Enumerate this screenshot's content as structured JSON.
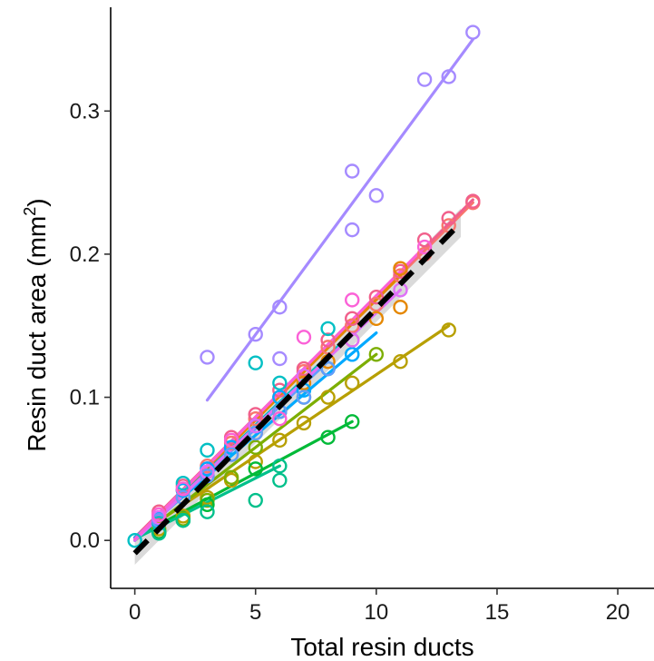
{
  "chart_data": {
    "type": "scatter",
    "title": "",
    "xlabel": "Total resin ducts",
    "ylabel_main": "Resin duct area",
    "ylabel_unit": "mm",
    "ylabel_unit_sup": "2",
    "xlim": [
      -1,
      21.5
    ],
    "ylim": [
      -0.0335,
      0.3725
    ],
    "x_ticks": [
      0,
      5,
      10,
      15,
      20
    ],
    "y_ticks": [
      0.0,
      0.1,
      0.2,
      0.3
    ],
    "x_tick_labels": [
      "0",
      "5",
      "10",
      "15",
      "20"
    ],
    "y_tick_labels": [
      "0.0",
      "0.1",
      "0.2",
      "0.3"
    ],
    "grid": false,
    "legend": "none",
    "series": [
      {
        "color": "#f8766d",
        "points": [
          [
            1,
            0.018
          ],
          [
            2,
            0.035
          ],
          [
            3,
            0.052
          ],
          [
            4,
            0.068
          ],
          [
            5,
            0.085
          ],
          [
            6,
            0.1
          ],
          [
            7,
            0.118
          ],
          [
            8,
            0.135
          ],
          [
            9,
            0.15
          ],
          [
            10,
            0.165
          ],
          [
            11,
            0.185
          ],
          [
            12,
            0.2
          ],
          [
            13,
            0.22
          ],
          [
            14,
            0.236
          ]
        ],
        "fit": [
          [
            0,
            0.001
          ],
          [
            14,
            0.236
          ]
        ]
      },
      {
        "color": "#f15f8b",
        "points": [
          [
            1,
            0.02
          ],
          [
            2,
            0.038
          ],
          [
            3,
            0.05
          ],
          [
            4,
            0.072
          ],
          [
            5,
            0.088
          ],
          [
            6,
            0.105
          ],
          [
            7,
            0.12
          ],
          [
            8,
            0.14
          ],
          [
            9,
            0.155
          ],
          [
            10,
            0.17
          ],
          [
            11,
            0.188
          ],
          [
            12,
            0.21
          ],
          [
            13,
            0.225
          ],
          [
            14,
            0.237
          ]
        ],
        "fit": [
          [
            0,
            0.002
          ],
          [
            14,
            0.238
          ]
        ]
      },
      {
        "color": "#e58700",
        "points": [
          [
            1,
            0.015
          ],
          [
            2,
            0.03
          ],
          [
            3,
            0.045
          ],
          [
            4,
            0.06
          ],
          [
            5,
            0.075
          ],
          [
            6,
            0.09
          ],
          [
            7,
            0.11
          ],
          [
            8,
            0.125
          ],
          [
            9,
            0.14
          ],
          [
            10,
            0.155
          ],
          [
            11,
            0.163
          ],
          [
            11,
            0.19
          ]
        ],
        "fit": [
          [
            0,
            0.0
          ],
          [
            11,
            0.185
          ]
        ]
      },
      {
        "color": "#b79f00",
        "points": [
          [
            1,
            0.008
          ],
          [
            2,
            0.017
          ],
          [
            3,
            0.03
          ],
          [
            4,
            0.042
          ],
          [
            5,
            0.055
          ],
          [
            6,
            0.07
          ],
          [
            7,
            0.082
          ],
          [
            8,
            0.1
          ],
          [
            9,
            0.11
          ],
          [
            11,
            0.125
          ],
          [
            13,
            0.147
          ]
        ],
        "fit": [
          [
            0,
            0.002
          ],
          [
            13,
            0.15
          ]
        ]
      },
      {
        "color": "#7cae00",
        "points": [
          [
            1,
            0.006
          ],
          [
            2,
            0.015
          ],
          [
            3,
            0.028
          ],
          [
            4,
            0.044
          ],
          [
            5,
            0.065
          ],
          [
            6,
            0.09
          ],
          [
            7,
            0.1
          ],
          [
            8,
            0.12
          ],
          [
            10,
            0.13
          ]
        ],
        "fit": [
          [
            0,
            0.0
          ],
          [
            10,
            0.13
          ]
        ]
      },
      {
        "color": "#00ba38",
        "points": [
          [
            1,
            0.006
          ],
          [
            2,
            0.014
          ],
          [
            3,
            0.025
          ],
          [
            5,
            0.05
          ],
          [
            8,
            0.072
          ],
          [
            9,
            0.083
          ]
        ],
        "fit": [
          [
            0,
            0.002
          ],
          [
            9,
            0.083
          ]
        ]
      },
      {
        "color": "#00c08b",
        "points": [
          [
            1,
            0.005
          ],
          [
            2,
            0.014
          ],
          [
            3,
            0.02
          ],
          [
            5,
            0.028
          ],
          [
            6,
            0.042
          ],
          [
            6,
            0.052
          ]
        ],
        "fit": [
          [
            0,
            0.001
          ],
          [
            6,
            0.052
          ]
        ]
      },
      {
        "color": "#00bfc4",
        "points": [
          [
            0,
            0.0
          ],
          [
            1,
            0.012
          ],
          [
            2,
            0.04
          ],
          [
            3,
            0.063
          ],
          [
            4,
            0.065
          ],
          [
            5,
            0.124
          ],
          [
            6,
            0.11
          ],
          [
            8,
            0.148
          ],
          [
            9,
            0.13
          ]
        ],
        "fit": [
          [
            0,
            0.0
          ],
          [
            9,
            0.145
          ]
        ]
      },
      {
        "color": "#00a9ff",
        "points": [
          [
            1,
            0.015
          ],
          [
            2,
            0.035
          ],
          [
            3,
            0.05
          ],
          [
            4,
            0.065
          ],
          [
            5,
            0.08
          ],
          [
            6,
            0.1
          ],
          [
            7,
            0.105
          ],
          [
            8,
            0.12
          ],
          [
            9,
            0.13
          ]
        ],
        "fit": [
          [
            0,
            0.002
          ],
          [
            10,
            0.145
          ]
        ]
      },
      {
        "color": "#619cff",
        "points": [
          [
            1,
            0.014
          ],
          [
            2,
            0.03
          ],
          [
            3,
            0.045
          ],
          [
            4,
            0.06
          ],
          [
            5,
            0.075
          ],
          [
            6,
            0.09
          ],
          [
            7,
            0.1
          ],
          [
            8,
            0.12
          ]
        ],
        "fit": [
          [
            0,
            0.0
          ],
          [
            8,
            0.125
          ]
        ]
      },
      {
        "color": "#a58aff",
        "points": [
          [
            3,
            0.128
          ],
          [
            5,
            0.144
          ],
          [
            6,
            0.163
          ],
          [
            6,
            0.127
          ],
          [
            9,
            0.258
          ],
          [
            9,
            0.217
          ],
          [
            10,
            0.241
          ],
          [
            12,
            0.322
          ],
          [
            13,
            0.324
          ],
          [
            14,
            0.355
          ]
        ],
        "fit": [
          [
            3,
            0.098
          ],
          [
            14,
            0.35
          ]
        ]
      },
      {
        "color": "#df70f8",
        "points": [
          [
            1,
            0.016
          ],
          [
            3,
            0.048
          ],
          [
            5,
            0.08
          ],
          [
            7,
            0.115
          ],
          [
            9,
            0.14
          ],
          [
            11,
            0.175
          ]
        ],
        "fit": [
          [
            0,
            0.0
          ],
          [
            11,
            0.175
          ]
        ]
      },
      {
        "color": "#fb61d7",
        "points": [
          [
            1,
            0.018
          ],
          [
            2,
            0.036
          ],
          [
            4,
            0.07
          ],
          [
            6,
            0.085
          ],
          [
            7,
            0.142
          ],
          [
            9,
            0.168
          ],
          [
            12,
            0.205
          ]
        ],
        "fit": [
          [
            0,
            0.001
          ],
          [
            12,
            0.205
          ]
        ]
      }
    ],
    "overall_fit": {
      "color": "#000000",
      "style": "dashed",
      "line": [
        [
          0,
          -0.009
        ],
        [
          13.5,
          0.222
        ]
      ],
      "ci_band": {
        "color": "#d3d3d3",
        "lower": [
          [
            0,
            -0.017
          ],
          [
            13.5,
            0.212
          ]
        ],
        "upper": [
          [
            0,
            -0.001
          ],
          [
            13.5,
            0.232
          ]
        ]
      }
    }
  }
}
